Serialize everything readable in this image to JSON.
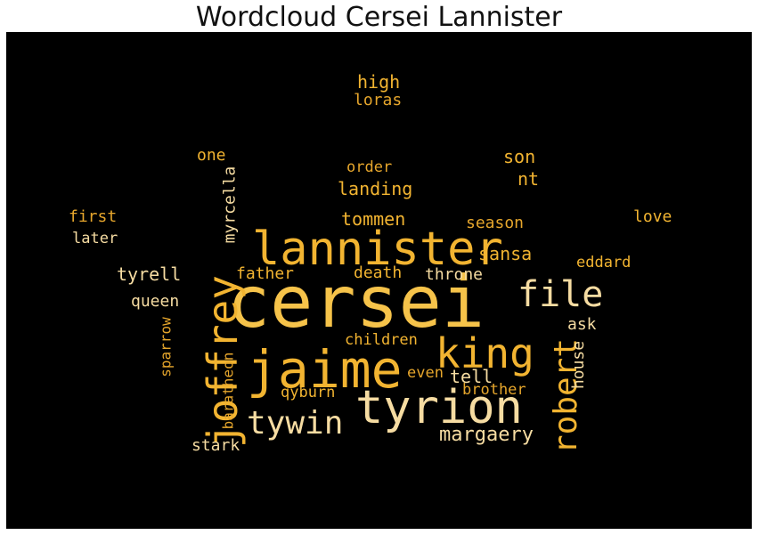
{
  "title": "Wordcloud Cersei Lannister",
  "colors": {
    "background": "#000000",
    "page": "#ffffff",
    "gold": "#f2b431",
    "light": "#f6dca2",
    "amber": "#e6a62c"
  },
  "words": [
    "cersei",
    "tyrion",
    "jaime",
    "lannister",
    "joffrey",
    "king",
    "file",
    "robert",
    "tywin",
    "margaery",
    "high",
    "loras",
    "one",
    "myrcella",
    "son",
    "order",
    "landing",
    "nt",
    "first",
    "later",
    "tommen",
    "season",
    "love",
    "sansa",
    "tyrell",
    "father",
    "death",
    "throne",
    "eddard",
    "queen",
    "ask",
    "sparrow",
    "children",
    "baratheon",
    "even",
    "tell",
    "house",
    "qyburn",
    "brother",
    "stark"
  ]
}
